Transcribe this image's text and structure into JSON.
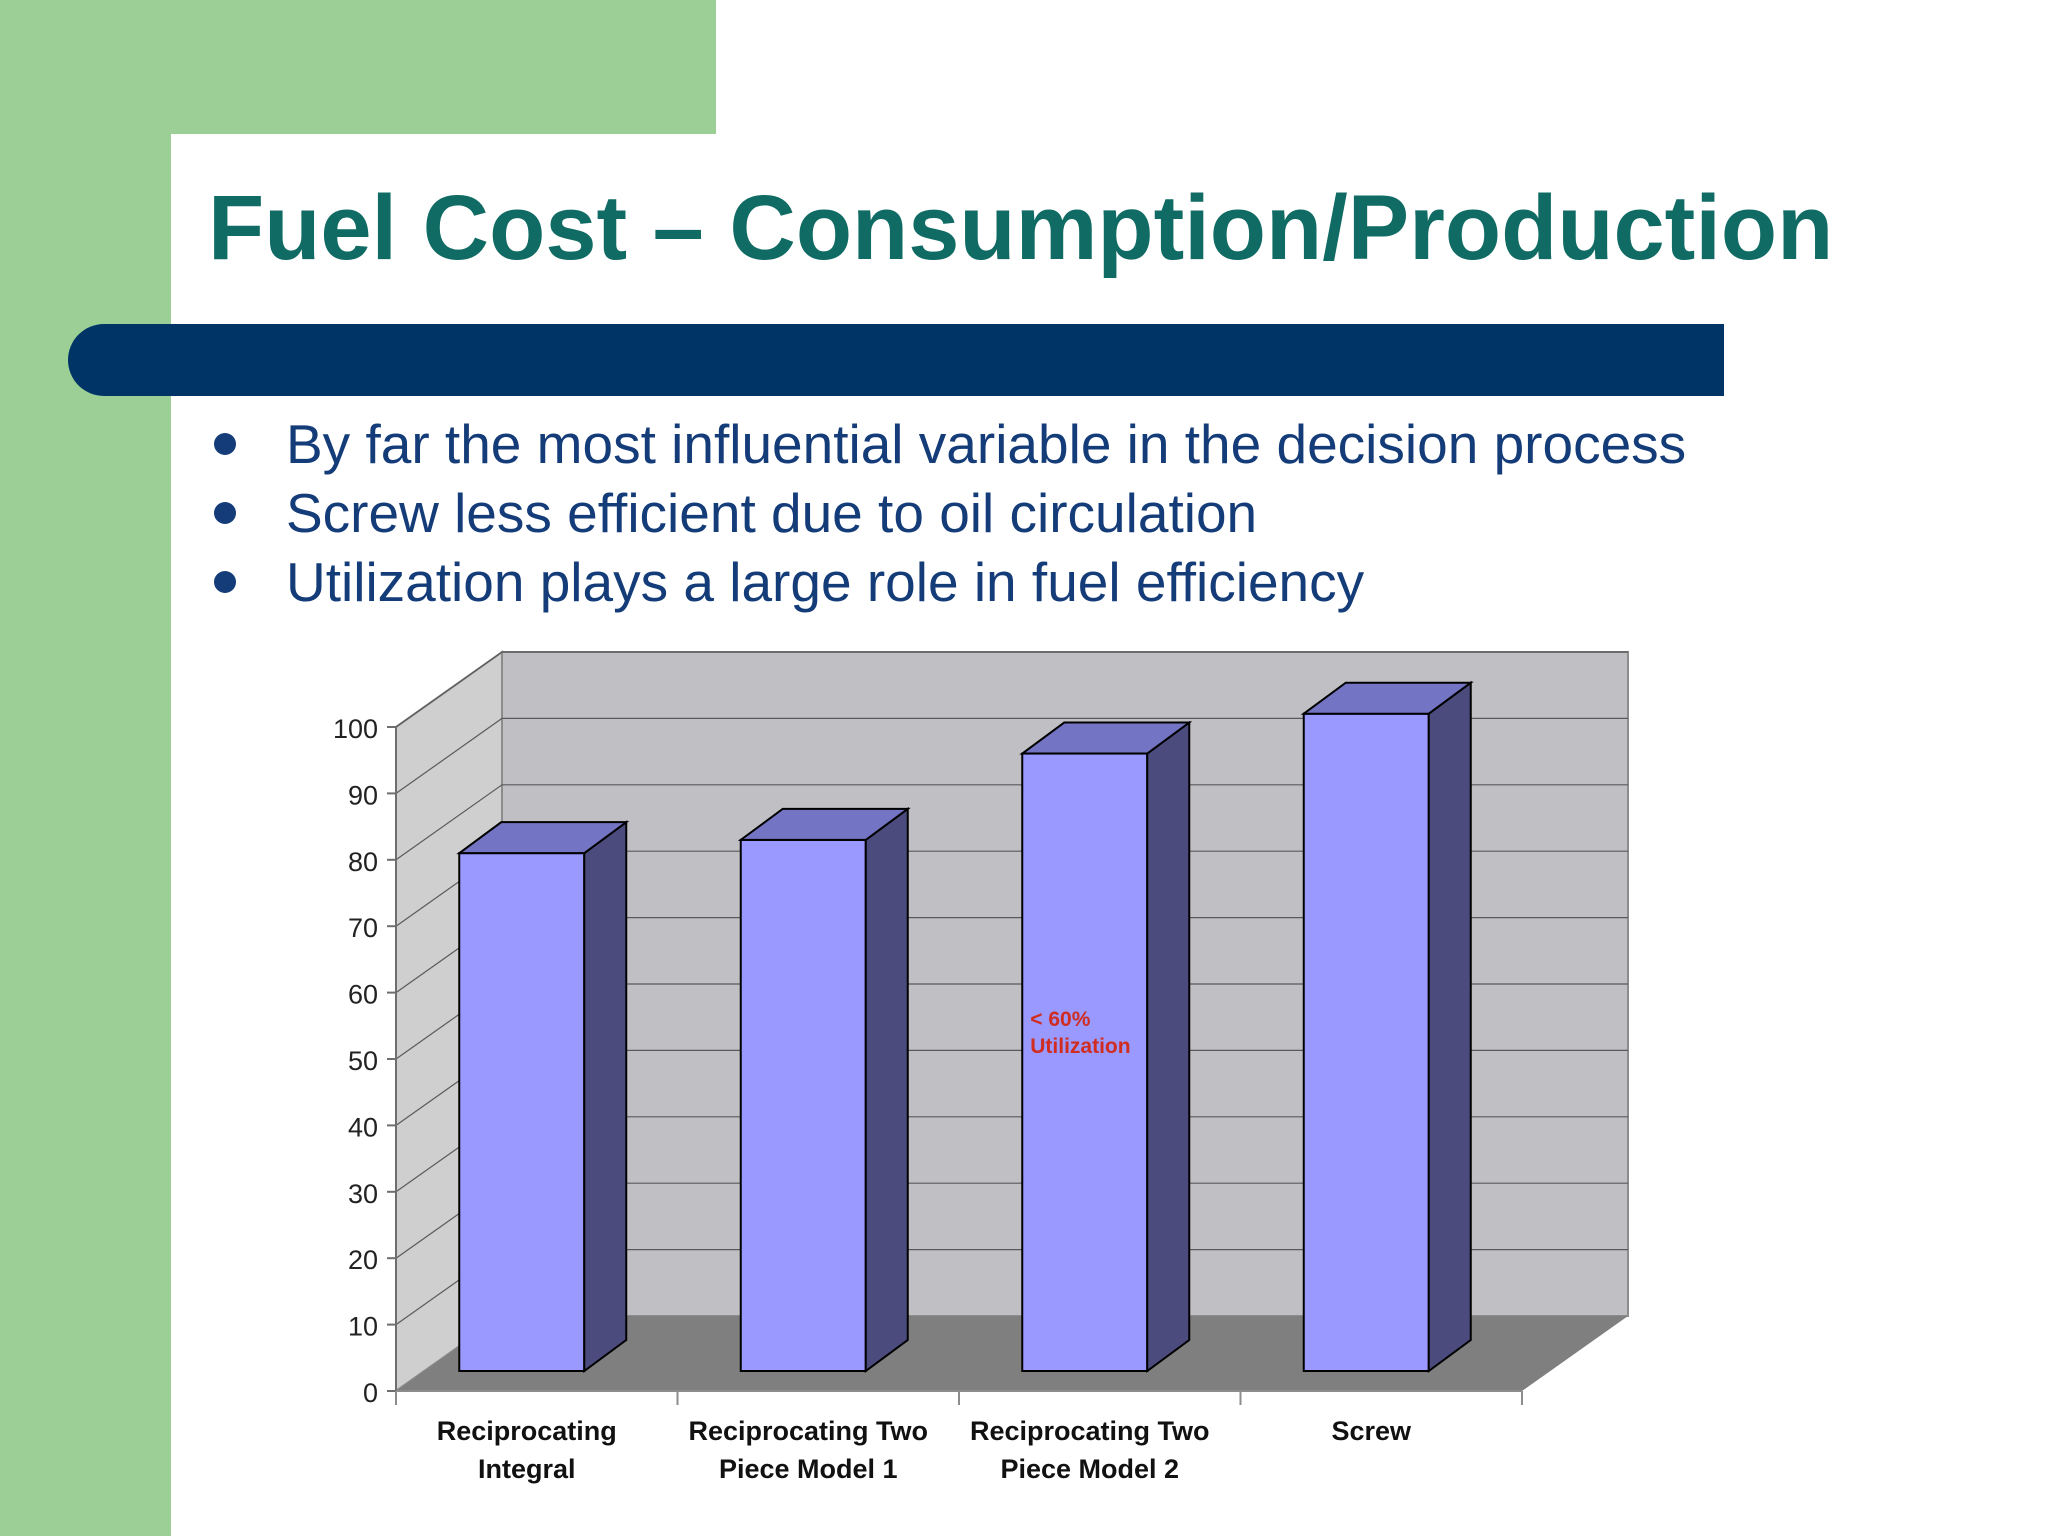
{
  "slide": {
    "title": "Fuel Cost – Consumption/Production",
    "bullets": [
      "By far the most influential variable in the decision process",
      "Screw less efficient due to oil circulation",
      "Utilization plays a large role in fuel efficiency"
    ]
  },
  "colors": {
    "title": "#0f6b63",
    "accent_green": "#9bcf95",
    "rule_blue": "#003466",
    "bullet_text": "#143c78",
    "bar_front": "#9999ff",
    "bar_top": "#7474c4",
    "bar_side": "#4b4b7e",
    "back_wall": "#c0bfc4",
    "side_wall": "#cfcfcf",
    "floor": "#7f7f7f",
    "annotation": "#d02c20"
  },
  "chart_data": {
    "type": "bar",
    "three_d": true,
    "categories": [
      [
        "Reciprocating",
        "Integral"
      ],
      [
        "Reciprocating Two",
        "Piece Model 1"
      ],
      [
        "Reciprocating Two",
        "Piece Model 2"
      ],
      [
        "Screw"
      ]
    ],
    "values": [
      81,
      83,
      96,
      102
    ],
    "ylim": [
      0,
      100
    ],
    "yticks": [
      "0",
      "10",
      "20",
      "30",
      "40",
      "50",
      "60",
      "70",
      "80",
      "90",
      "100"
    ],
    "grid": true,
    "legend": "none",
    "annotations": [
      {
        "category_index": 2,
        "value": 58,
        "lines": [
          "< 60%",
          "Utilization"
        ]
      }
    ]
  }
}
